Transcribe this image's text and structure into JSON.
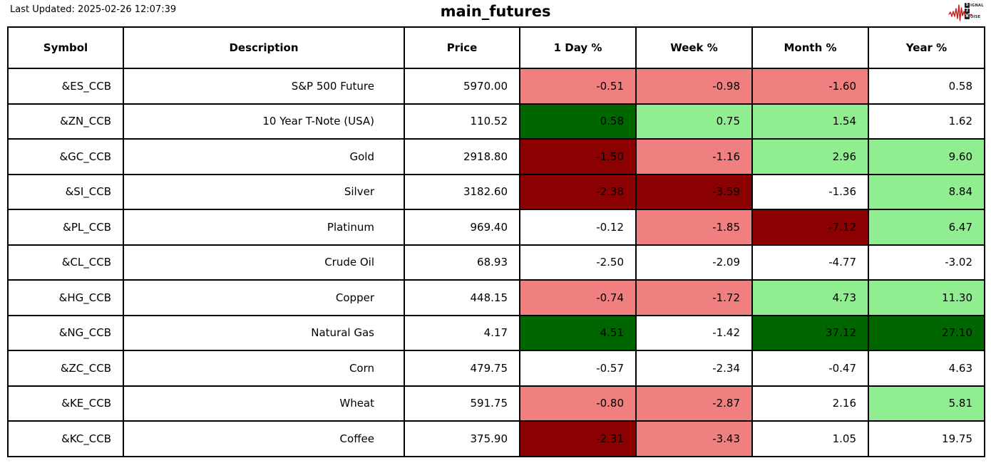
{
  "header": {
    "last_updated": "Last Updated: 2025-02-26 12:07:39",
    "title": "main_futures"
  },
  "logo": {
    "waveform_color": "#cf2020",
    "lines": [
      {
        "boxed": "S",
        "rest": "IGNAL"
      },
      {
        "boxed": "2",
        "rest": ""
      },
      {
        "boxed": "N",
        "rest": "OISE"
      }
    ]
  },
  "colors": {
    "white": "#ffffff",
    "light_red": "#f08080",
    "dark_red": "#8b0000",
    "light_green": "#90ee90",
    "dark_green": "#006600",
    "border": "#000000"
  },
  "chart_data": {
    "type": "table",
    "title": "main_futures",
    "columns": [
      "Symbol",
      "Description",
      "Price",
      "1 Day %",
      "Week %",
      "Month %",
      "Year %"
    ],
    "rows": [
      {
        "symbol": "&ES_CCB",
        "description": "S&P 500 Future",
        "price": "5970.00",
        "cells": [
          {
            "value": "-0.51",
            "bg": "light_red"
          },
          {
            "value": "-0.98",
            "bg": "light_red"
          },
          {
            "value": "-1.60",
            "bg": "light_red"
          },
          {
            "value": "0.58",
            "bg": "white"
          }
        ]
      },
      {
        "symbol": "&ZN_CCB",
        "description": "10 Year T-Note (USA)",
        "price": "110.52",
        "cells": [
          {
            "value": "0.58",
            "bg": "dark_green"
          },
          {
            "value": "0.75",
            "bg": "light_green"
          },
          {
            "value": "1.54",
            "bg": "light_green"
          },
          {
            "value": "1.62",
            "bg": "white"
          }
        ]
      },
      {
        "symbol": "&GC_CCB",
        "description": "Gold",
        "price": "2918.80",
        "cells": [
          {
            "value": "-1.50",
            "bg": "dark_red"
          },
          {
            "value": "-1.16",
            "bg": "light_red"
          },
          {
            "value": "2.96",
            "bg": "light_green"
          },
          {
            "value": "9.60",
            "bg": "light_green"
          }
        ]
      },
      {
        "symbol": "&SI_CCB",
        "description": "Silver",
        "price": "3182.60",
        "cells": [
          {
            "value": "-2.38",
            "bg": "dark_red"
          },
          {
            "value": "-3.59",
            "bg": "dark_red"
          },
          {
            "value": "-1.36",
            "bg": "white"
          },
          {
            "value": "8.84",
            "bg": "light_green"
          }
        ]
      },
      {
        "symbol": "&PL_CCB",
        "description": "Platinum",
        "price": "969.40",
        "cells": [
          {
            "value": "-0.12",
            "bg": "white"
          },
          {
            "value": "-1.85",
            "bg": "light_red"
          },
          {
            "value": "-7.12",
            "bg": "dark_red"
          },
          {
            "value": "6.47",
            "bg": "light_green"
          }
        ]
      },
      {
        "symbol": "&CL_CCB",
        "description": "Crude Oil",
        "price": "68.93",
        "cells": [
          {
            "value": "-2.50",
            "bg": "white"
          },
          {
            "value": "-2.09",
            "bg": "white"
          },
          {
            "value": "-4.77",
            "bg": "white"
          },
          {
            "value": "-3.02",
            "bg": "white"
          }
        ]
      },
      {
        "symbol": "&HG_CCB",
        "description": "Copper",
        "price": "448.15",
        "cells": [
          {
            "value": "-0.74",
            "bg": "light_red"
          },
          {
            "value": "-1.72",
            "bg": "light_red"
          },
          {
            "value": "4.73",
            "bg": "light_green"
          },
          {
            "value": "11.30",
            "bg": "light_green"
          }
        ]
      },
      {
        "symbol": "&NG_CCB",
        "description": "Natural Gas",
        "price": "4.17",
        "cells": [
          {
            "value": "4.51",
            "bg": "dark_green"
          },
          {
            "value": "-1.42",
            "bg": "white"
          },
          {
            "value": "37.12",
            "bg": "dark_green"
          },
          {
            "value": "27.10",
            "bg": "dark_green"
          }
        ]
      },
      {
        "symbol": "&ZC_CCB",
        "description": "Corn",
        "price": "479.75",
        "cells": [
          {
            "value": "-0.57",
            "bg": "white"
          },
          {
            "value": "-2.34",
            "bg": "white"
          },
          {
            "value": "-0.47",
            "bg": "white"
          },
          {
            "value": "4.63",
            "bg": "white"
          }
        ]
      },
      {
        "symbol": "&KE_CCB",
        "description": "Wheat",
        "price": "591.75",
        "cells": [
          {
            "value": "-0.80",
            "bg": "light_red"
          },
          {
            "value": "-2.87",
            "bg": "light_red"
          },
          {
            "value": "2.16",
            "bg": "white"
          },
          {
            "value": "5.81",
            "bg": "light_green"
          }
        ]
      },
      {
        "symbol": "&KC_CCB",
        "description": "Coffee",
        "price": "375.90",
        "cells": [
          {
            "value": "-2.31",
            "bg": "dark_red"
          },
          {
            "value": "-3.43",
            "bg": "light_red"
          },
          {
            "value": "1.05",
            "bg": "white"
          },
          {
            "value": "19.75",
            "bg": "white"
          }
        ]
      }
    ]
  }
}
